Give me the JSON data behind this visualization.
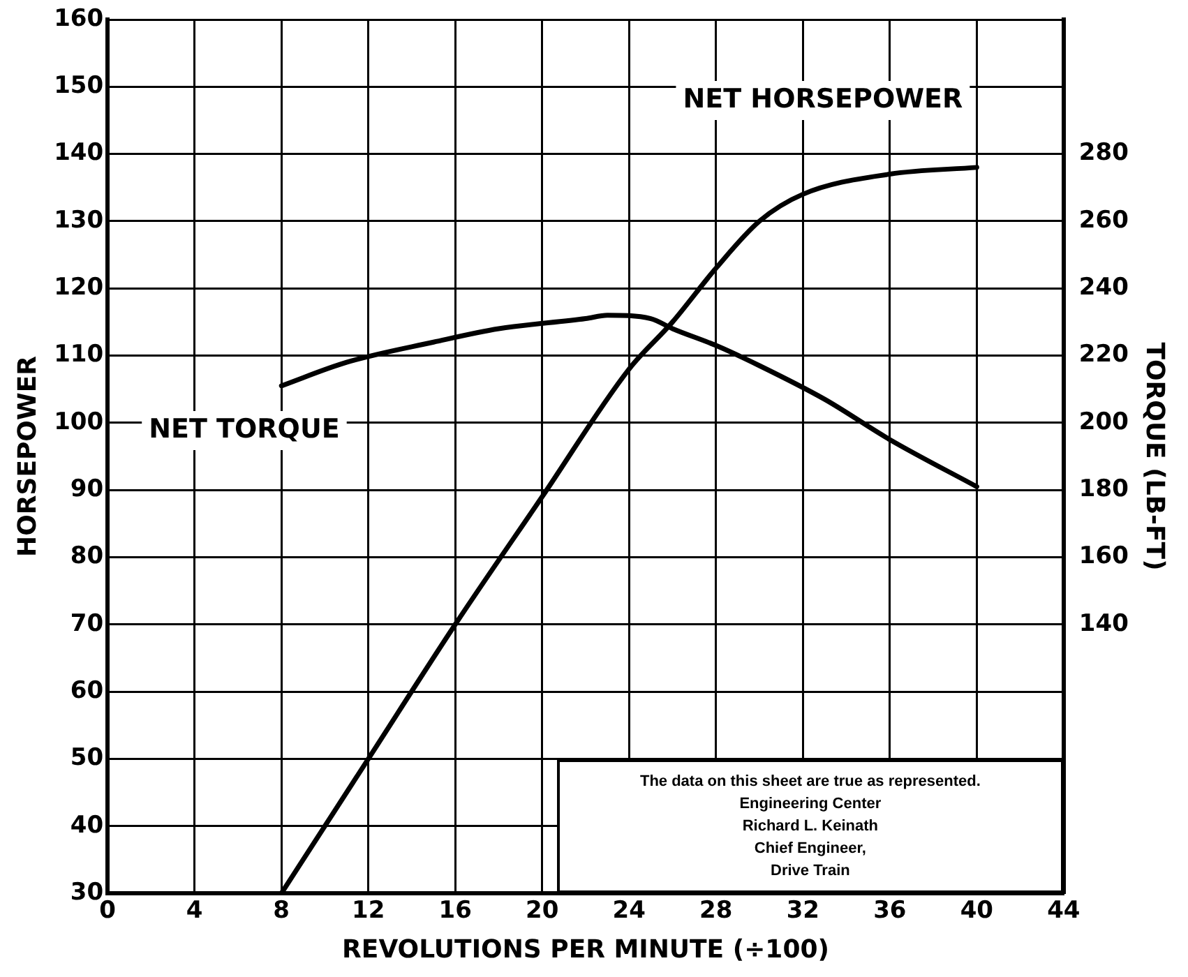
{
  "chart_data": {
    "type": "line",
    "xlabel": "REVOLUTIONS PER MINUTE (÷100)",
    "ylabel": "HORSEPOWER",
    "y2label": "TORQUE (LB-FT)",
    "xlim": [
      0,
      44
    ],
    "xticks": [
      0,
      4,
      8,
      12,
      16,
      20,
      24,
      28,
      32,
      36,
      40,
      44
    ],
    "ylim": [
      30,
      160
    ],
    "yticks": [
      30,
      40,
      50,
      60,
      70,
      80,
      90,
      100,
      110,
      120,
      130,
      140,
      150,
      160
    ],
    "y2lim": [
      60,
      320
    ],
    "y2ticks": [
      140,
      160,
      180,
      200,
      220,
      240,
      260,
      280
    ],
    "grid": true,
    "legend": false,
    "marker": "none",
    "line_style": "solid",
    "series": [
      {
        "name": "NET HORSEPOWER",
        "color": "#000000",
        "x": [
          8,
          12,
          16,
          20,
          24,
          26,
          28,
          30,
          32,
          36,
          40
        ],
        "values": [
          30,
          50,
          70,
          89,
          108,
          115,
          123,
          130,
          134,
          137,
          138
        ]
      },
      {
        "name": "NET TORQUE",
        "color": "#000000",
        "axis": "y2",
        "x": [
          8,
          11,
          15,
          18,
          22,
          23,
          25,
          26,
          28,
          30,
          33,
          36,
          40
        ],
        "values": [
          211,
          218,
          224,
          228,
          231,
          232,
          231,
          228,
          223,
          217,
          207,
          195,
          181
        ]
      }
    ],
    "annotations": [
      "The data on this sheet are true as represented.",
      "Engineering Center",
      "Richard L. Keinath",
      "Chief Engineer,",
      "Drive Train"
    ]
  }
}
